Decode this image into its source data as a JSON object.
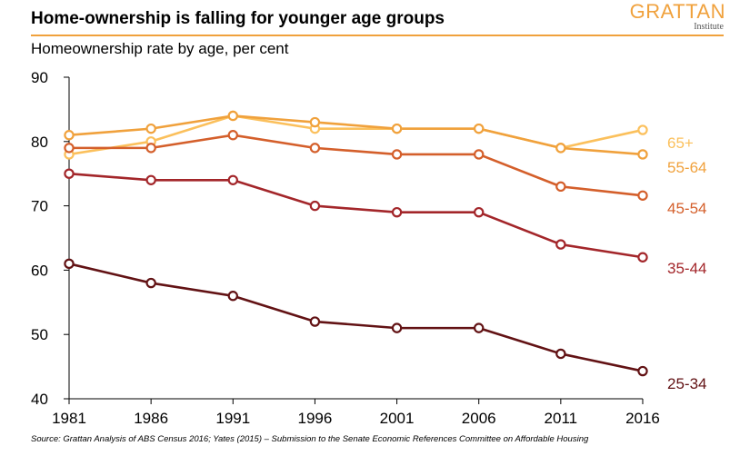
{
  "header": {
    "title": "Home-ownership is falling for younger age groups",
    "subtitle": "Homeownership rate by age, per cent",
    "logo_text": "GRATTAN",
    "logo_subtext": "Institute"
  },
  "source": "Source: Grattan Analysis of ABS Census 2016; Yates (2015) – Submission to the Senate Economic References Committee on Affordable Housing",
  "colors": {
    "accent": "#f0a13c",
    "series_65plus": "#fbc05c",
    "series_55_64": "#f0a13c",
    "series_45_54": "#d45f2b",
    "series_35_44": "#a3262a",
    "series_25_34": "#621214"
  },
  "chart_data": {
    "type": "line",
    "x": [
      "1981",
      "1986",
      "1991",
      "1996",
      "2001",
      "2006",
      "2011",
      "2016"
    ],
    "ylim": [
      40,
      90
    ],
    "yticks": [
      40,
      50,
      60,
      70,
      80,
      90
    ],
    "grid": false,
    "marker": "open-circle",
    "series": [
      {
        "name": "65+",
        "color": "#fbc05c",
        "values": [
          78,
          80,
          84,
          82,
          82,
          82,
          79,
          81.8
        ]
      },
      {
        "name": "55-64",
        "color": "#f0a13c",
        "values": [
          81,
          82,
          84,
          83,
          82,
          82,
          79,
          78
        ]
      },
      {
        "name": "45-54",
        "color": "#d45f2b",
        "values": [
          79,
          79,
          81,
          79,
          78,
          78,
          73,
          71.6
        ]
      },
      {
        "name": "35-44",
        "color": "#a3262a",
        "values": [
          75,
          74,
          74,
          70,
          69,
          69,
          64,
          62
        ]
      },
      {
        "name": "25-34",
        "color": "#621214",
        "values": [
          61,
          58,
          56,
          52,
          51,
          51,
          47,
          44.3
        ]
      }
    ]
  }
}
